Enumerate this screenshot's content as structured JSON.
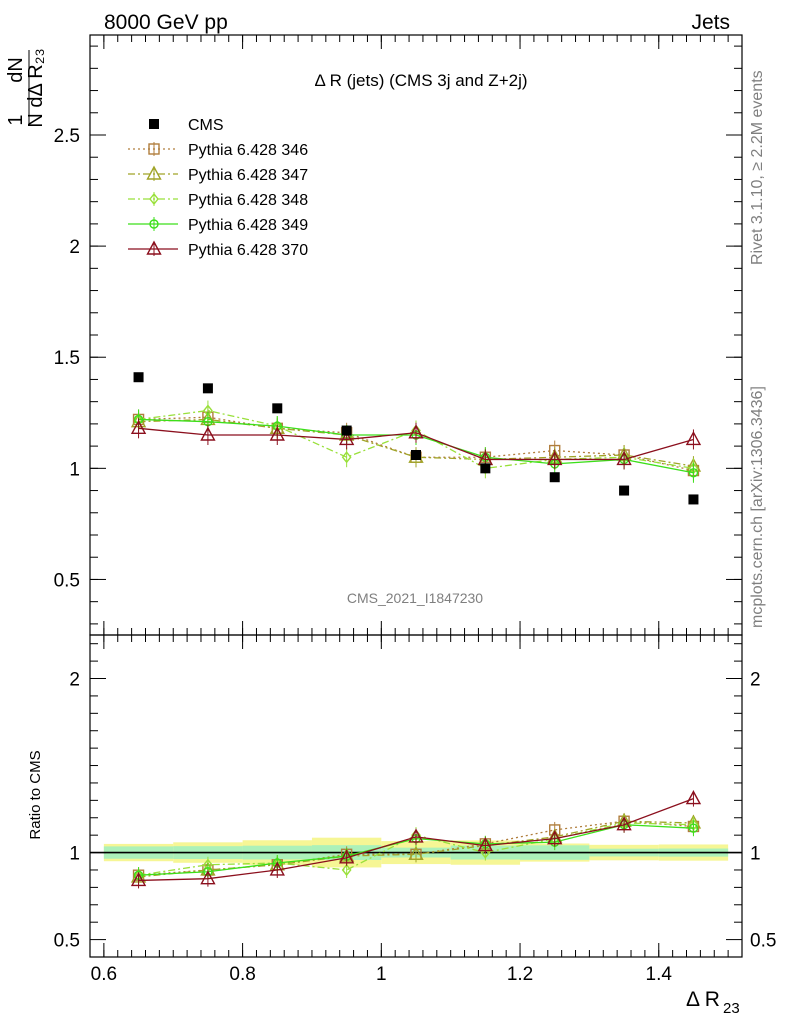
{
  "header": {
    "left": "8000 GeV pp",
    "right": "Jets"
  },
  "side": {
    "rivet": "Rivet 3.1.10, ≥ 2.2M events",
    "mcplots": "mcplots.cern.ch [arXiv:1306.3436]"
  },
  "chart_data": {
    "type": "scatter",
    "title": "Δ R (jets) (CMS 3j and Z+2j)",
    "analysis_label": "CMS_2021_I1847230",
    "xlabel": "Δ R23",
    "ylabel": "1/N dN/dΔ R23",
    "ratio_ylabel": "Ratio to CMS",
    "xlim": [
      0.58,
      1.52
    ],
    "ylim": [
      0.25,
      2.95
    ],
    "ratio_ylim": [
      0.4,
      2.25
    ],
    "x_ticks": [
      "0.6",
      "0.8",
      "1",
      "1.2",
      "1.4"
    ],
    "y_ticks": [
      "0.5",
      "1",
      "1.5",
      "2",
      "2.5"
    ],
    "ratio_y_ticks": [
      "0.5",
      "1",
      "2"
    ],
    "ratio_y_ticks_right": [
      "0.5",
      "1",
      "2"
    ],
    "x": [
      0.65,
      0.75,
      0.85,
      0.95,
      1.05,
      1.15,
      1.25,
      1.35,
      1.45
    ],
    "data": {
      "name": "CMS",
      "values": [
        1.41,
        1.36,
        1.27,
        1.17,
        1.06,
        1.0,
        0.96,
        0.9,
        0.86
      ],
      "band_inner": [
        0.05,
        0.05,
        0.05,
        0.05,
        0.03,
        0.04,
        0.04,
        0.02,
        0.02
      ],
      "band_outer": [
        0.07,
        0.08,
        0.09,
        0.1,
        0.07,
        0.07,
        0.05,
        0.04,
        0.04
      ],
      "color": "#000000"
    },
    "legend_position": "top-left",
    "series": [
      {
        "name": "Pythia 6.428 346",
        "marker": "square",
        "line": "dotted",
        "color": "#b07d3c",
        "values": [
          1.22,
          1.23,
          1.18,
          1.16,
          1.05,
          1.05,
          1.08,
          1.06,
          0.99
        ],
        "ratio": [
          0.87,
          0.9,
          0.93,
          0.99,
          0.99,
          1.05,
          1.13,
          1.18,
          1.15
        ]
      },
      {
        "name": "Pythia 6.428 347",
        "marker": "triangle",
        "line": "dashdot",
        "color": "#a0a428",
        "values": [
          1.21,
          1.22,
          1.18,
          1.15,
          1.05,
          1.04,
          1.05,
          1.06,
          1.01
        ],
        "ratio": [
          0.86,
          0.9,
          0.93,
          0.98,
          0.99,
          1.04,
          1.09,
          1.18,
          1.17
        ]
      },
      {
        "name": "Pythia 6.428 348",
        "marker": "diamond",
        "line": "dashdot",
        "color": "#99e03a",
        "values": [
          1.22,
          1.26,
          1.19,
          1.05,
          1.17,
          1.0,
          1.04,
          1.05,
          1.0
        ],
        "ratio": [
          0.87,
          0.93,
          0.94,
          0.9,
          1.1,
          1.0,
          1.08,
          1.17,
          1.16
        ]
      },
      {
        "name": "Pythia 6.428 349",
        "marker": "circle",
        "line": "solid",
        "color": "#3cdf1a",
        "values": [
          1.22,
          1.21,
          1.19,
          1.15,
          1.15,
          1.05,
          1.02,
          1.04,
          0.98
        ],
        "ratio": [
          0.87,
          0.89,
          0.94,
          0.98,
          1.08,
          1.05,
          1.06,
          1.16,
          1.14
        ]
      },
      {
        "name": "Pythia 6.428 370",
        "marker": "triangle",
        "line": "solid",
        "color": "#8b0f1d",
        "values": [
          1.18,
          1.15,
          1.15,
          1.13,
          1.16,
          1.04,
          1.04,
          1.04,
          1.13
        ],
        "ratio": [
          0.84,
          0.85,
          0.9,
          0.97,
          1.09,
          1.04,
          1.08,
          1.16,
          1.31
        ]
      }
    ]
  }
}
